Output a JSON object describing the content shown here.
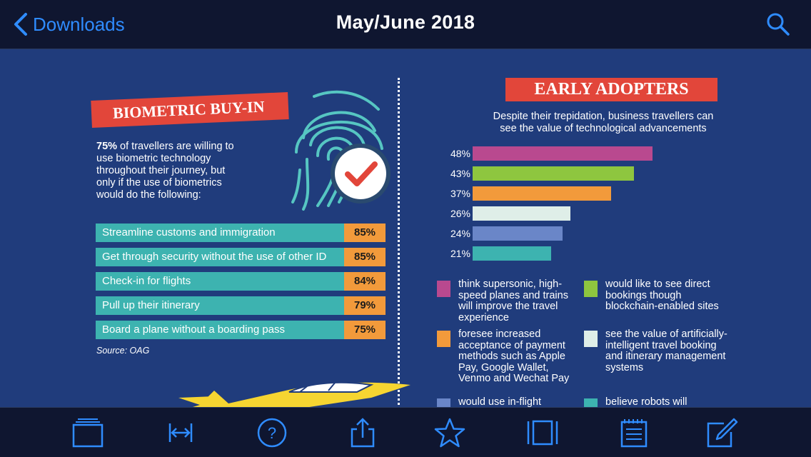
{
  "header": {
    "back_label": "Downloads",
    "title": "May/June 2018"
  },
  "left_panel": {
    "banner": "BIOMETRIC BUY-IN",
    "intro_bold": "75%",
    "intro_text": " of travellers are willing to use biometric technology throughout their journey, but only if the use of biometrics would do the following:",
    "rows": [
      {
        "label": "Streamline customs and immigration",
        "pct": "85%"
      },
      {
        "label": "Get through security without the use of other ID",
        "pct": "85%"
      },
      {
        "label": "Check-in for flights",
        "pct": "84%"
      },
      {
        "label": "Pull up their itinerary",
        "pct": "79%"
      },
      {
        "label": "Board a plane without a boarding pass",
        "pct": "75%"
      }
    ],
    "source": "Source: OAG"
  },
  "right_panel": {
    "banner": "EARLY ADOPTERS",
    "subtitle": "Despite their trepidation, business travellers can see the value of technological advancements",
    "legend": [
      {
        "text": "think supersonic, high-speed planes and trains will improve the travel experience",
        "color": "#b9498f"
      },
      {
        "text": "would like to see direct bookings though blockchain-enabled sites",
        "color": "#8ec63f"
      },
      {
        "text": "foresee increased acceptance of payment methods such as Apple Pay, Google Wallet, Venmo and Wechat Pay",
        "color": "#f29a3b"
      },
      {
        "text": "see the value of artificially-intelligent travel booking and itinerary management systems",
        "color": "#dfeee8"
      },
      {
        "text": "would use in-flight",
        "color": "#6a86c8"
      },
      {
        "text": "believe robots will",
        "color": "#3db3b0"
      }
    ]
  },
  "chart_data": {
    "type": "bar",
    "orientation": "horizontal",
    "title": "EARLY ADOPTERS",
    "categories": [
      "48%",
      "43%",
      "37%",
      "26%",
      "24%",
      "21%"
    ],
    "values": [
      48,
      43,
      37,
      26,
      24,
      21
    ],
    "colors": [
      "#b9498f",
      "#8ec63f",
      "#f29a3b",
      "#dfeee8",
      "#6a86c8",
      "#3db3b0"
    ],
    "xlim": [
      0,
      60
    ],
    "grid": false
  },
  "toolbar": {
    "icons": [
      "thumbnails-icon",
      "fit-width-icon",
      "help-icon",
      "share-icon",
      "bookmark-star-icon",
      "page-view-icon",
      "contents-icon",
      "annotate-icon"
    ]
  },
  "colors": {
    "accent": "#2f8cff",
    "banner": "#e2463a",
    "teal": "#3db3b0",
    "orange": "#f29a3b",
    "page_bg": "#203c7c"
  }
}
